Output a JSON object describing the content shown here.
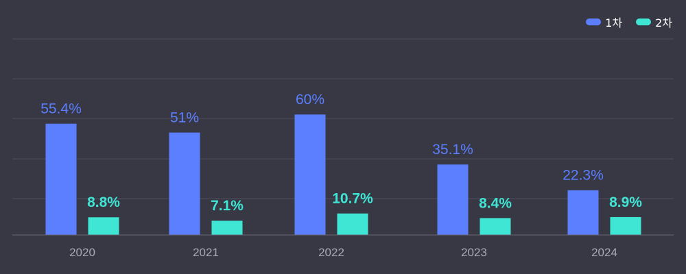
{
  "chart_data": {
    "type": "bar",
    "categories": [
      "2020",
      "2021",
      "2022",
      "2023",
      "2024"
    ],
    "series": [
      {
        "name": "1차",
        "color": "#5b7fff",
        "values": [
          55.4,
          51,
          60,
          35.1,
          22.3
        ],
        "labels": [
          "55.4%",
          "51%",
          "60%",
          "35.1%",
          "22.3%"
        ]
      },
      {
        "name": "2차",
        "color": "#3fe6d4",
        "values": [
          8.8,
          7.1,
          10.7,
          8.4,
          8.9
        ],
        "labels": [
          "8.8%",
          "7.1%",
          "10.7%",
          "8.4%",
          "8.9%"
        ]
      }
    ],
    "title": "",
    "xlabel": "",
    "ylabel": "",
    "grid": true,
    "legend_position": "top-right"
  },
  "colors": {
    "background": "#383845",
    "grid": "#4c4c5a",
    "axis_text": "#a9a9b6"
  }
}
